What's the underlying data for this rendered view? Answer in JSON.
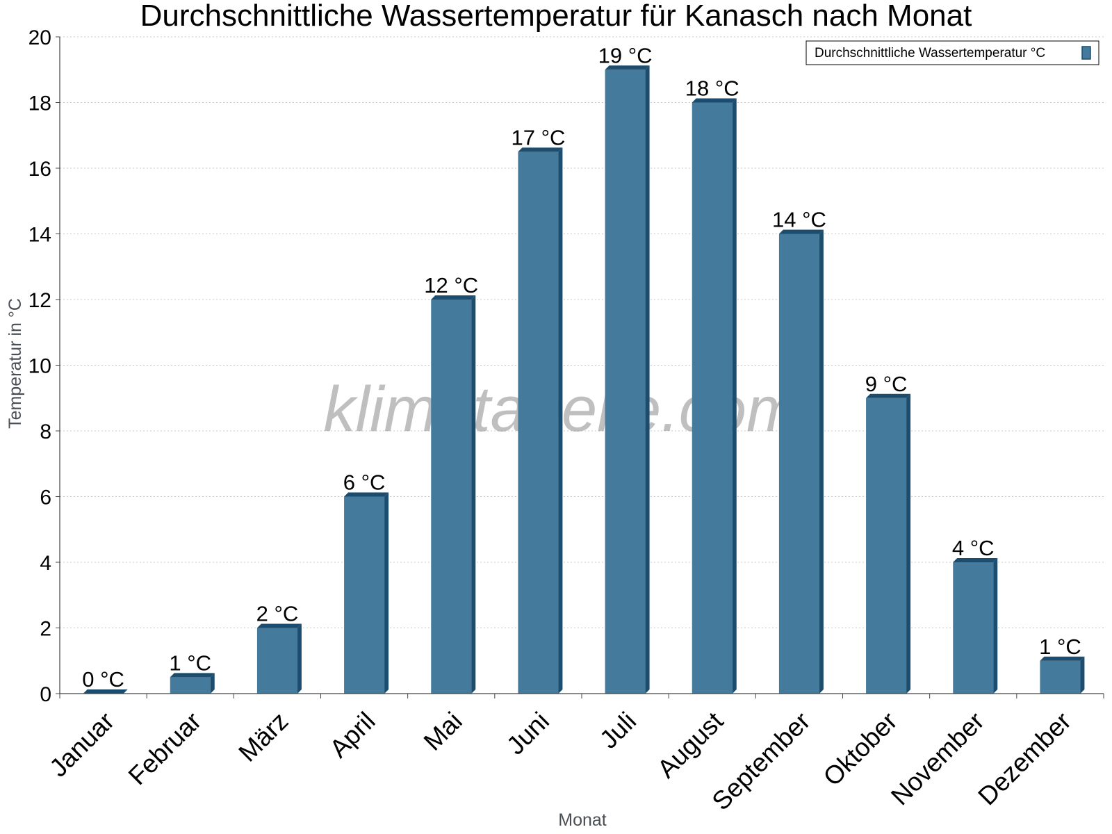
{
  "chart_data": {
    "type": "bar",
    "title": "Durchschnittliche Wassertemperatur für Kanasch nach Monat",
    "xlabel": "Monat",
    "ylabel": "Temperatur in °C",
    "categories": [
      "Januar",
      "Februar",
      "März",
      "April",
      "Mai",
      "Juni",
      "Juli",
      "August",
      "September",
      "Oktober",
      "November",
      "Dezember"
    ],
    "series": [
      {
        "name": "Durchschnittliche Wassertemperatur °C",
        "values": [
          0,
          0.5,
          2,
          6,
          12,
          16.5,
          19,
          18,
          14,
          9,
          4,
          1
        ],
        "labels": [
          "0 °C",
          "1 °C",
          "2 °C",
          "6 °C",
          "12 °C",
          "17 °C",
          "19 °C",
          "18 °C",
          "14 °C",
          "9 °C",
          "4 °C",
          "1 °C"
        ]
      }
    ],
    "yticks": [
      "0",
      "2",
      "4",
      "6",
      "8",
      "10",
      "12",
      "14",
      "16",
      "18",
      "20"
    ],
    "ylim": [
      0,
      20
    ],
    "grid": true,
    "legend_position": "top-right",
    "colors": {
      "bar": "#447a9c",
      "bar_dark": "#1d4d6e",
      "grid": "#c8c8c8",
      "axis": "#444444"
    },
    "watermark": "klimatabelle.com"
  }
}
